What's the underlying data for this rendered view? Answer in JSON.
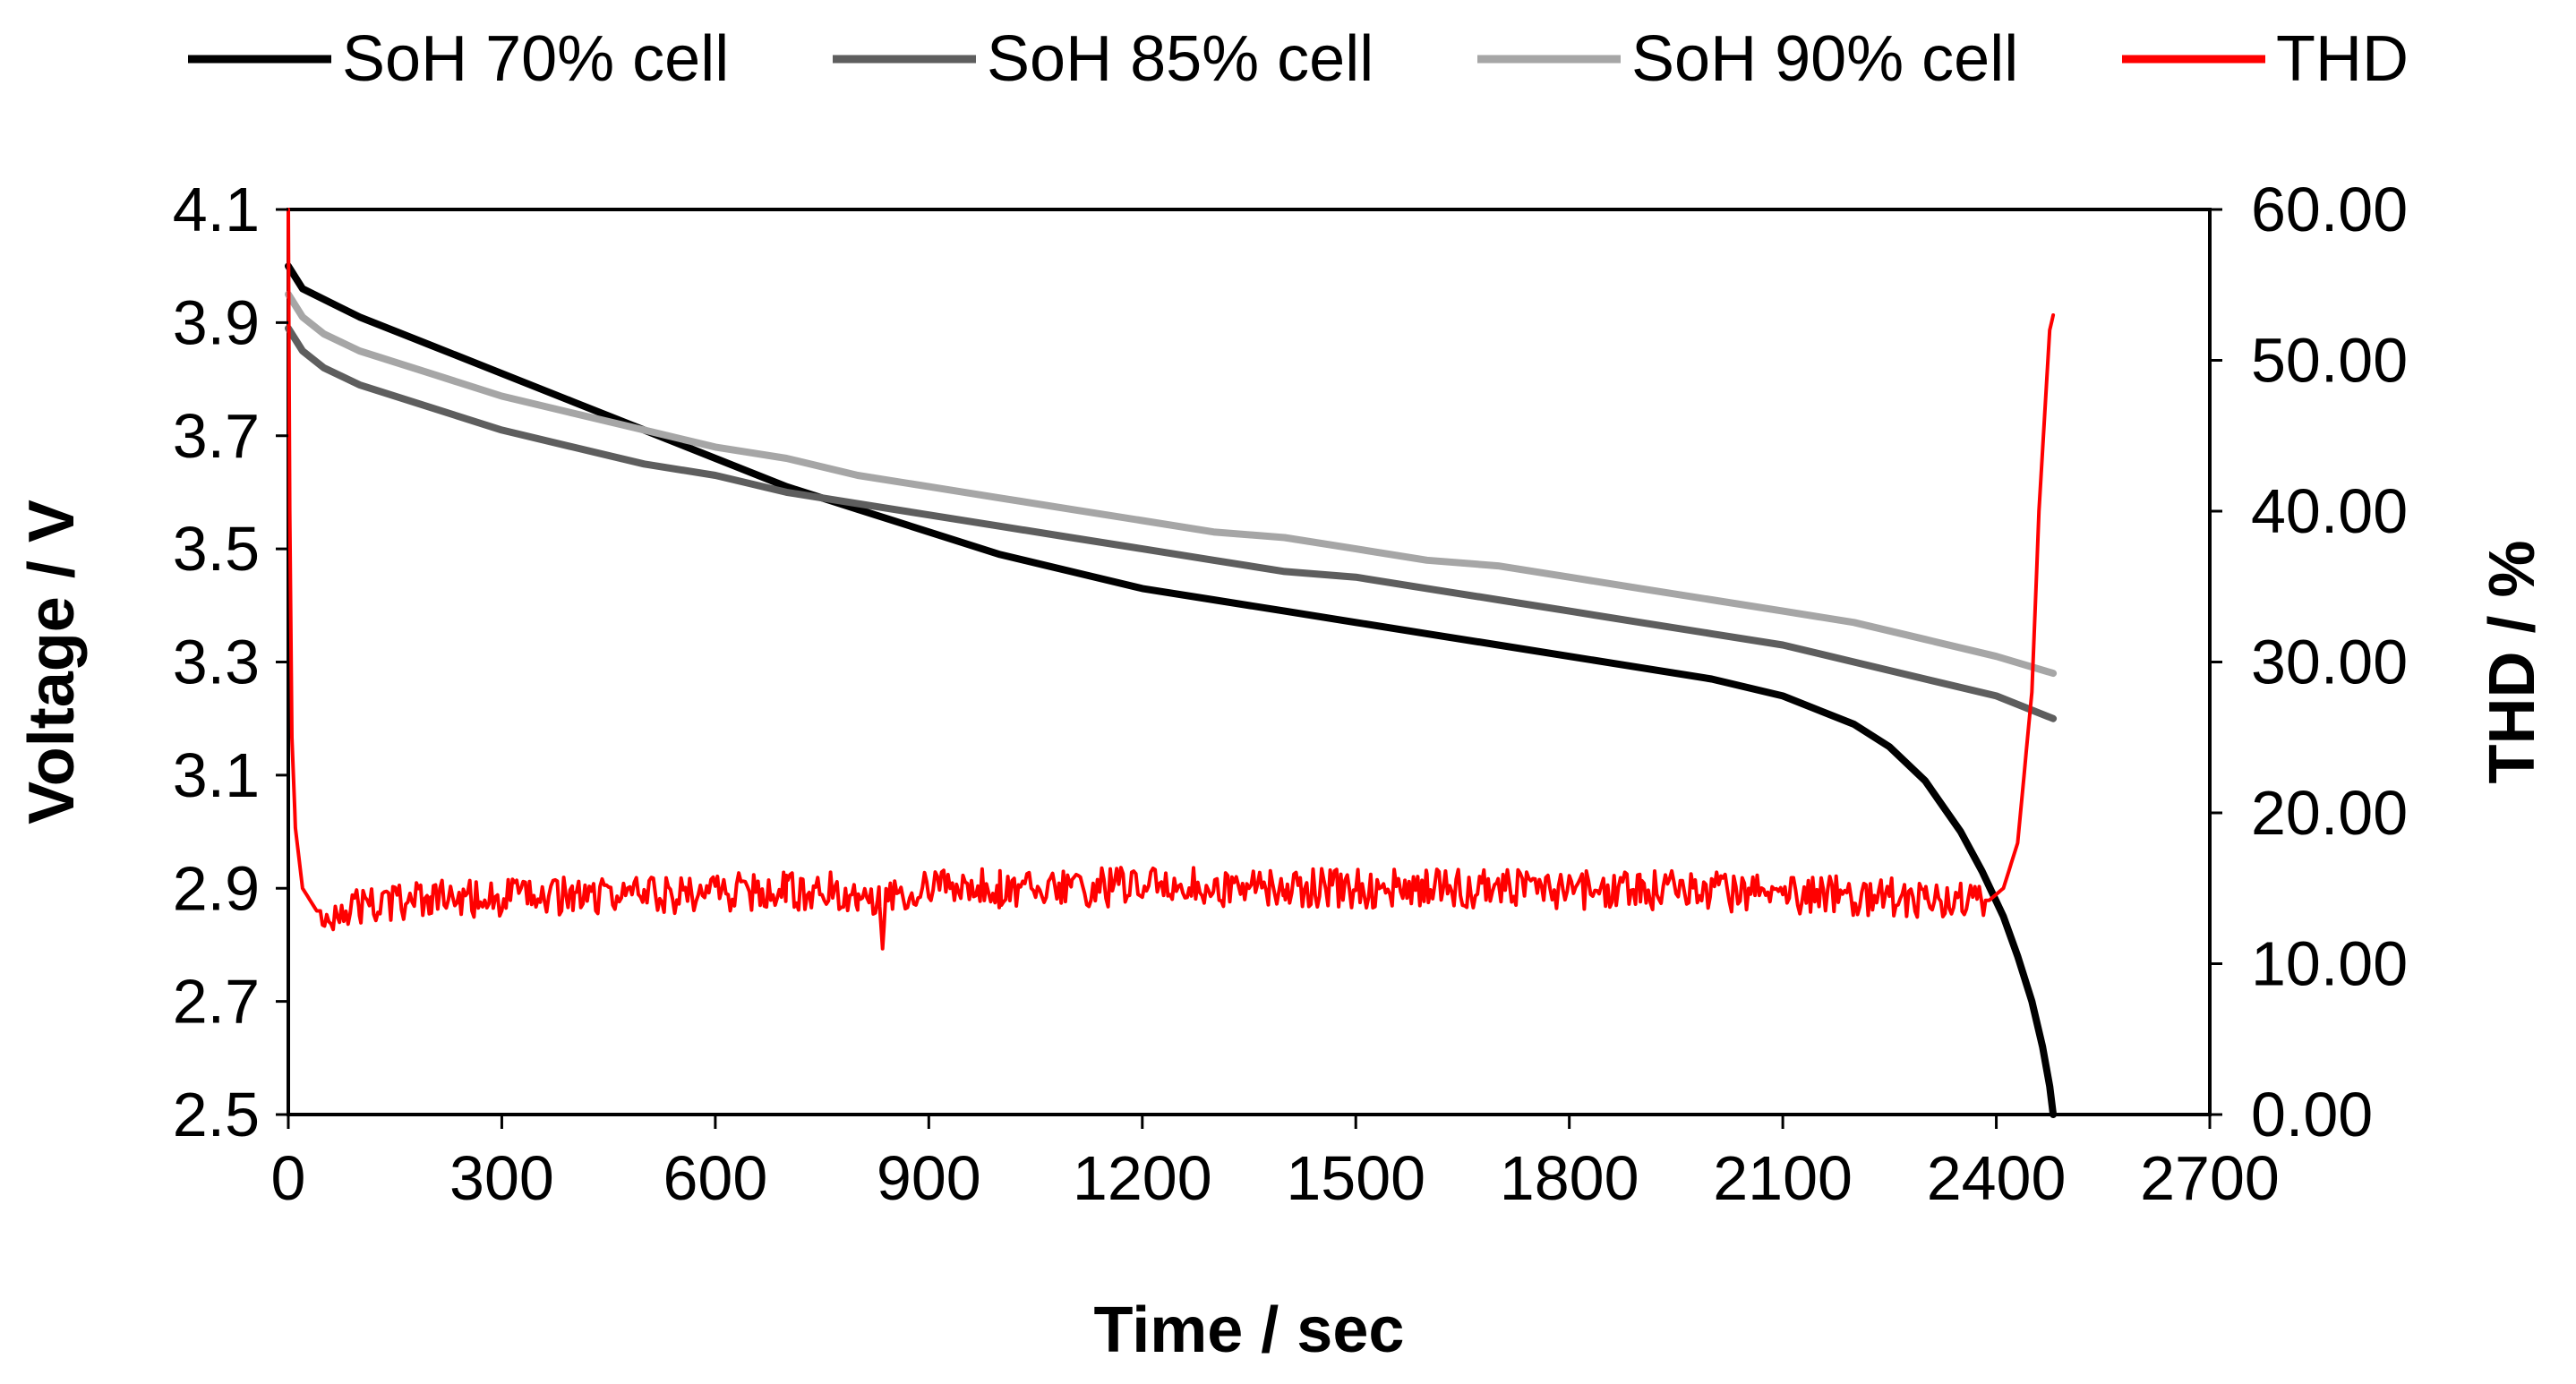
{
  "chart_data": {
    "type": "line",
    "xlabel": "Time / sec",
    "ylabel_left": "Voltage / V",
    "ylabel_right": "THD / %",
    "xlim": [
      0,
      2700
    ],
    "ylim_left": [
      2.5,
      4.1
    ],
    "ylim_right": [
      0,
      60
    ],
    "x_ticks": [
      "0",
      "300",
      "600",
      "900",
      "1200",
      "1500",
      "1800",
      "2100",
      "2400",
      "2700"
    ],
    "y_left_ticks": [
      "2.5",
      "2.7",
      "2.9",
      "3.1",
      "3.3",
      "3.5",
      "3.7",
      "3.9",
      "4.1"
    ],
    "y_right_ticks": [
      "0.00",
      "10.00",
      "20.00",
      "30.00",
      "40.00",
      "50.00",
      "60.00"
    ],
    "grid": false,
    "legend_position": "top",
    "series": [
      {
        "name": "SoH 70% cell",
        "color": "#000000",
        "axis": "left",
        "x": [
          0,
          20,
          100,
          200,
          300,
          400,
          500,
          600,
          700,
          800,
          900,
          1000,
          1100,
          1200,
          1300,
          1400,
          1500,
          1600,
          1700,
          1800,
          1900,
          2000,
          2100,
          2200,
          2250,
          2300,
          2350,
          2380,
          2410,
          2430,
          2450,
          2465,
          2475,
          2480
        ],
        "values": [
          4.0,
          3.96,
          3.91,
          3.86,
          3.81,
          3.76,
          3.71,
          3.66,
          3.61,
          3.57,
          3.53,
          3.49,
          3.46,
          3.43,
          3.41,
          3.39,
          3.37,
          3.35,
          3.33,
          3.31,
          3.29,
          3.27,
          3.24,
          3.19,
          3.15,
          3.09,
          3.0,
          2.93,
          2.85,
          2.78,
          2.7,
          2.62,
          2.55,
          2.5
        ]
      },
      {
        "name": "SoH 85% cell",
        "color": "#5e5e5e",
        "axis": "left",
        "x": [
          0,
          20,
          50,
          100,
          200,
          300,
          400,
          500,
          600,
          700,
          800,
          900,
          1000,
          1100,
          1200,
          1300,
          1400,
          1500,
          1600,
          1700,
          1800,
          1900,
          2000,
          2100,
          2200,
          2300,
          2400,
          2480
        ],
        "values": [
          3.89,
          3.85,
          3.82,
          3.79,
          3.75,
          3.71,
          3.68,
          3.65,
          3.63,
          3.6,
          3.58,
          3.56,
          3.54,
          3.52,
          3.5,
          3.48,
          3.46,
          3.45,
          3.43,
          3.41,
          3.39,
          3.37,
          3.35,
          3.33,
          3.3,
          3.27,
          3.24,
          3.2
        ]
      },
      {
        "name": "SoH 90% cell",
        "color": "#a6a6a6",
        "axis": "left",
        "x": [
          0,
          20,
          50,
          100,
          200,
          300,
          400,
          500,
          600,
          700,
          800,
          900,
          1000,
          1100,
          1200,
          1300,
          1400,
          1500,
          1600,
          1700,
          1800,
          1900,
          2000,
          2100,
          2200,
          2300,
          2400,
          2480
        ],
        "values": [
          3.95,
          3.91,
          3.88,
          3.85,
          3.81,
          3.77,
          3.74,
          3.71,
          3.68,
          3.66,
          3.63,
          3.61,
          3.59,
          3.57,
          3.55,
          3.53,
          3.52,
          3.5,
          3.48,
          3.47,
          3.45,
          3.43,
          3.41,
          3.39,
          3.37,
          3.34,
          3.31,
          3.28
        ]
      },
      {
        "name": "THD",
        "color": "#ff0000",
        "axis": "right",
        "x": [
          0,
          2,
          5,
          10,
          20,
          40,
          60,
          100,
          200,
          300,
          400,
          500,
          600,
          700,
          800,
          830,
          835,
          840,
          900,
          1000,
          1100,
          1200,
          1300,
          1400,
          1500,
          1600,
          1700,
          1800,
          1900,
          2000,
          2100,
          2200,
          2300,
          2350,
          2390,
          2410,
          2430,
          2450,
          2460,
          2470,
          2475,
          2480
        ],
        "values": [
          60.0,
          40.0,
          25.0,
          19.0,
          15.0,
          13.5,
          13.5,
          13.8,
          14.2,
          14.4,
          14.5,
          14.6,
          14.7,
          14.8,
          14.8,
          14.5,
          11.0,
          14.6,
          15.0,
          15.0,
          15.0,
          15.1,
          15.1,
          15.1,
          15.0,
          15.0,
          15.0,
          14.9,
          14.9,
          14.8,
          14.6,
          14.5,
          14.3,
          14.2,
          14.2,
          15.0,
          18.0,
          28.0,
          40.0,
          48.0,
          52.0,
          53.0
        ]
      }
    ]
  }
}
